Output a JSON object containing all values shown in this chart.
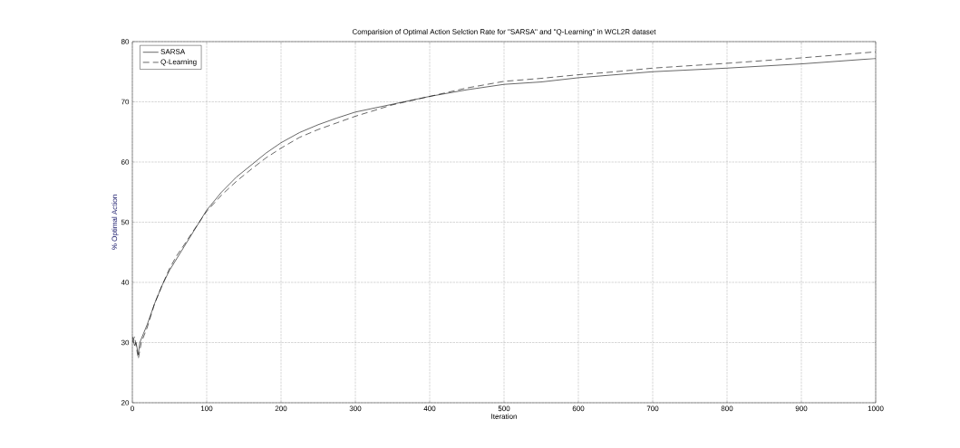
{
  "chart_data": {
    "type": "line",
    "title": "Comparision of Optimal Action Selction Rate for \"SARSA\" and \"Q-Learning\" in WCL2R dataset",
    "xlabel": "Iteration",
    "ylabel": "% Optimal Action",
    "xlim": [
      0,
      1000
    ],
    "ylim": [
      20,
      80
    ],
    "xticks": [
      0,
      100,
      200,
      300,
      400,
      500,
      600,
      700,
      800,
      900,
      1000
    ],
    "yticks": [
      20,
      30,
      40,
      50,
      60,
      70,
      80
    ],
    "grid": true,
    "legend": "top left",
    "marker": "none",
    "series": [
      {
        "name": "SARSA",
        "color": "#000000",
        "line_style": "solid",
        "x": [
          0,
          3,
          5,
          8,
          10,
          15,
          20,
          30,
          40,
          50,
          60,
          70,
          80,
          90,
          100,
          120,
          140,
          160,
          180,
          200,
          225,
          250,
          275,
          300,
          350,
          400,
          450,
          500,
          550,
          600,
          650,
          700,
          800,
          900,
          1000
        ],
        "values": [
          31,
          29.5,
          30,
          28,
          30,
          31.5,
          33,
          36.5,
          39.5,
          42,
          44,
          46,
          48,
          50,
          52,
          55,
          57.5,
          59.5,
          61.5,
          63.2,
          64.9,
          66.2,
          67.3,
          68.3,
          69.6,
          70.9,
          72,
          72.9,
          73.3,
          74,
          74.5,
          75,
          75.6,
          76.3,
          77.2
        ]
      },
      {
        "name": "Q-Learning",
        "color": "#000000",
        "line_style": "dashed",
        "x": [
          0,
          3,
          8,
          12,
          20,
          30,
          40,
          50,
          60,
          70,
          80,
          90,
          100,
          120,
          140,
          160,
          180,
          200,
          225,
          250,
          275,
          300,
          350,
          400,
          450,
          500,
          550,
          600,
          650,
          700,
          800,
          900,
          1000
        ],
        "values": [
          30,
          31,
          27.3,
          30,
          32.5,
          36.5,
          39.5,
          42.3,
          44.5,
          46.3,
          48.2,
          50,
          51.8,
          54.5,
          56.8,
          58.8,
          60.7,
          62.3,
          64.1,
          65.4,
          66.5,
          67.6,
          69.5,
          70.9,
          72.3,
          73.4,
          73.9,
          74.5,
          75,
          75.6,
          76.4,
          77.3,
          78.3
        ]
      }
    ]
  }
}
